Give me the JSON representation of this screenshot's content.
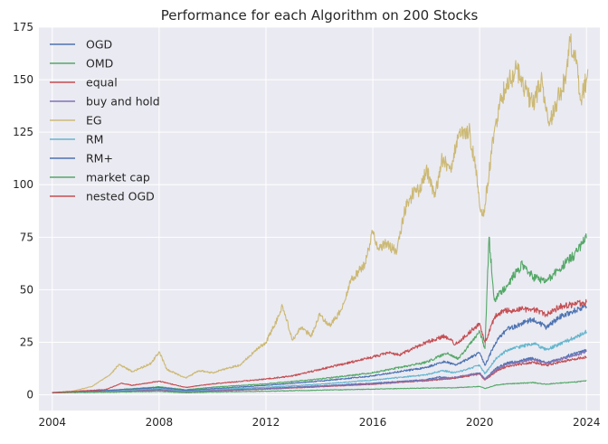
{
  "chart_data": {
    "type": "line",
    "title": "Performance for each Algorithm on 200 Stocks",
    "xlabel": "",
    "ylabel": "",
    "xlim": [
      2003.5,
      2024.5
    ],
    "ylim": [
      -7.5,
      175
    ],
    "x_ticks": [
      2004,
      2008,
      2012,
      2016,
      2020,
      2024
    ],
    "y_ticks": [
      0,
      25,
      50,
      75,
      100,
      125,
      150,
      175
    ],
    "grid": true,
    "legend_position": "top-left",
    "colors": {
      "background": "#eaeaf2",
      "grid": "#ffffff",
      "text": "#262626"
    },
    "series": [
      {
        "name": "OGD",
        "color": "#4c72b0",
        "points": [
          [
            2004,
            1
          ],
          [
            2006,
            1.6
          ],
          [
            2008,
            2.6
          ],
          [
            2009,
            1.6
          ],
          [
            2010,
            2.1
          ],
          [
            2012,
            3.0
          ],
          [
            2014,
            4.2
          ],
          [
            2016,
            5.5
          ],
          [
            2018,
            7.2
          ],
          [
            2018.5,
            8.5
          ],
          [
            2019,
            7.8
          ],
          [
            2020,
            10.5
          ],
          [
            2020.2,
            7.5
          ],
          [
            2020.6,
            12.5
          ],
          [
            2021,
            15.0
          ],
          [
            2022,
            17.5
          ],
          [
            2022.5,
            15.2
          ],
          [
            2023,
            17.0
          ],
          [
            2023.5,
            19.5
          ],
          [
            2024,
            21.5
          ]
        ]
      },
      {
        "name": "OMD",
        "color": "#55a868",
        "points": [
          [
            2004,
            1
          ],
          [
            2006,
            2.0
          ],
          [
            2008,
            3.8
          ],
          [
            2009,
            2.4
          ],
          [
            2010,
            3.6
          ],
          [
            2012,
            5.2
          ],
          [
            2014,
            7.5
          ],
          [
            2016,
            10.5
          ],
          [
            2018,
            15.5
          ],
          [
            2018.8,
            20.0
          ],
          [
            2019.2,
            17.0
          ],
          [
            2020,
            30.0
          ],
          [
            2020.2,
            22.0
          ],
          [
            2020.35,
            75.0
          ],
          [
            2020.55,
            45.0
          ],
          [
            2021,
            52.0
          ],
          [
            2021.6,
            62.0
          ],
          [
            2022,
            56.0
          ],
          [
            2022.5,
            54.0
          ],
          [
            2023,
            60.0
          ],
          [
            2023.5,
            66.0
          ],
          [
            2024,
            74.5
          ]
        ]
      },
      {
        "name": "equal",
        "color": "#c44e52",
        "points": [
          [
            2004,
            1
          ],
          [
            2006,
            1.4
          ],
          [
            2008,
            2.2
          ],
          [
            2009,
            1.3
          ],
          [
            2010,
            1.8
          ],
          [
            2012,
            2.7
          ],
          [
            2014,
            3.8
          ],
          [
            2016,
            5.0
          ],
          [
            2018,
            6.7
          ],
          [
            2019,
            7.8
          ],
          [
            2020,
            9.8
          ],
          [
            2020.2,
            7.0
          ],
          [
            2020.6,
            11.0
          ],
          [
            2021,
            13.5
          ],
          [
            2022,
            15.5
          ],
          [
            2022.5,
            14.0
          ],
          [
            2023,
            15.5
          ],
          [
            2023.5,
            16.8
          ],
          [
            2024,
            18.0
          ]
        ]
      },
      {
        "name": "buy and hold",
        "color": "#8172b3",
        "points": [
          [
            2004,
            1
          ],
          [
            2006,
            1.5
          ],
          [
            2008,
            2.3
          ],
          [
            2009,
            1.4
          ],
          [
            2010,
            1.9
          ],
          [
            2012,
            2.8
          ],
          [
            2014,
            4.0
          ],
          [
            2016,
            5.2
          ],
          [
            2018,
            7.0
          ],
          [
            2019,
            8.2
          ],
          [
            2020,
            10.2
          ],
          [
            2020.2,
            7.3
          ],
          [
            2020.6,
            11.8
          ],
          [
            2021,
            14.5
          ],
          [
            2022,
            16.8
          ],
          [
            2022.5,
            15.0
          ],
          [
            2023,
            16.8
          ],
          [
            2023.5,
            18.5
          ],
          [
            2024,
            20.5
          ]
        ]
      },
      {
        "name": "EG",
        "color": "#ccb974",
        "points": [
          [
            2004,
            1
          ],
          [
            2004.8,
            1.8
          ],
          [
            2005.5,
            4.0
          ],
          [
            2006.2,
            10.0
          ],
          [
            2006.5,
            14.5
          ],
          [
            2007.0,
            11.0
          ],
          [
            2007.7,
            15.0
          ],
          [
            2008.0,
            20.5
          ],
          [
            2008.3,
            12.0
          ],
          [
            2009.0,
            8.0
          ],
          [
            2009.5,
            11.5
          ],
          [
            2010.0,
            10.5
          ],
          [
            2010.5,
            12.5
          ],
          [
            2011.0,
            14.0
          ],
          [
            2011.7,
            22.0
          ],
          [
            2012.0,
            25.0
          ],
          [
            2012.5,
            38.0
          ],
          [
            2012.6,
            43.0
          ],
          [
            2013.0,
            26.0
          ],
          [
            2013.3,
            32.0
          ],
          [
            2013.7,
            28.0
          ],
          [
            2014.0,
            38.0
          ],
          [
            2014.4,
            33.0
          ],
          [
            2014.8,
            40.0
          ],
          [
            2015.2,
            55.0
          ],
          [
            2015.7,
            62.0
          ],
          [
            2016.0,
            78.0
          ],
          [
            2016.2,
            70.0
          ],
          [
            2016.5,
            72.0
          ],
          [
            2016.9,
            68.0
          ],
          [
            2017.2,
            88.0
          ],
          [
            2017.5,
            96.0
          ],
          [
            2017.8,
            98.0
          ],
          [
            2018.0,
            108.0
          ],
          [
            2018.3,
            94.0
          ],
          [
            2018.6,
            112.0
          ],
          [
            2018.9,
            108.0
          ],
          [
            2019.2,
            122.0
          ],
          [
            2019.6,
            126.0
          ],
          [
            2019.9,
            104.0
          ],
          [
            2020.0,
            90.0
          ],
          [
            2020.15,
            85.0
          ],
          [
            2020.5,
            122.0
          ],
          [
            2020.8,
            140.0
          ],
          [
            2021.0,
            148.0
          ],
          [
            2021.4,
            155.0
          ],
          [
            2021.8,
            142.0
          ],
          [
            2022.0,
            138.0
          ],
          [
            2022.3,
            150.0
          ],
          [
            2022.6,
            128.0
          ],
          [
            2022.9,
            140.0
          ],
          [
            2023.2,
            150.0
          ],
          [
            2023.4,
            168.0
          ],
          [
            2023.6,
            160.0
          ],
          [
            2023.8,
            140.0
          ],
          [
            2024.0,
            150.0
          ],
          [
            2024.05,
            155.0
          ]
        ]
      },
      {
        "name": "RM",
        "color": "#64b5cd",
        "points": [
          [
            2004,
            1
          ],
          [
            2006,
            1.8
          ],
          [
            2008,
            3.0
          ],
          [
            2009,
            1.8
          ],
          [
            2010,
            2.5
          ],
          [
            2012,
            3.6
          ],
          [
            2014,
            5.0
          ],
          [
            2016,
            7.0
          ],
          [
            2018,
            9.5
          ],
          [
            2018.6,
            11.5
          ],
          [
            2019.1,
            10.5
          ],
          [
            2020,
            14.0
          ],
          [
            2020.2,
            10.0
          ],
          [
            2020.6,
            17.0
          ],
          [
            2021,
            21.0
          ],
          [
            2022,
            24.5
          ],
          [
            2022.5,
            21.5
          ],
          [
            2023,
            24.0
          ],
          [
            2023.5,
            27.0
          ],
          [
            2024,
            30.0
          ]
        ]
      },
      {
        "name": "RM+",
        "color": "#4c72b0",
        "points": [
          [
            2004,
            1
          ],
          [
            2006,
            2.0
          ],
          [
            2008,
            3.5
          ],
          [
            2009,
            2.1
          ],
          [
            2010,
            2.9
          ],
          [
            2012,
            4.5
          ],
          [
            2014,
            6.5
          ],
          [
            2016,
            9.0
          ],
          [
            2018,
            13.0
          ],
          [
            2018.7,
            16.0
          ],
          [
            2019.1,
            14.0
          ],
          [
            2020,
            20.0
          ],
          [
            2020.2,
            14.0
          ],
          [
            2020.6,
            25.0
          ],
          [
            2021,
            31.0
          ],
          [
            2022,
            36.0
          ],
          [
            2022.5,
            32.0
          ],
          [
            2023,
            37.0
          ],
          [
            2023.5,
            40.0
          ],
          [
            2024,
            42.0
          ]
        ]
      },
      {
        "name": "market cap",
        "color": "#55a868",
        "points": [
          [
            2004,
            1
          ],
          [
            2006,
            1.2
          ],
          [
            2008,
            1.6
          ],
          [
            2009,
            1.0
          ],
          [
            2010,
            1.3
          ],
          [
            2012,
            1.7
          ],
          [
            2014,
            2.2
          ],
          [
            2016,
            2.7
          ],
          [
            2018,
            3.2
          ],
          [
            2019,
            3.3
          ],
          [
            2020,
            4.0
          ],
          [
            2020.2,
            3.0
          ],
          [
            2020.6,
            4.6
          ],
          [
            2021,
            5.2
          ],
          [
            2022,
            5.8
          ],
          [
            2022.5,
            5.0
          ],
          [
            2023,
            5.6
          ],
          [
            2023.5,
            6.0
          ],
          [
            2024,
            6.6
          ]
        ]
      },
      {
        "name": "nested OGD",
        "color": "#c44e52",
        "points": [
          [
            2004,
            1
          ],
          [
            2006,
            2.5
          ],
          [
            2006.6,
            5.5
          ],
          [
            2007,
            4.5
          ],
          [
            2008,
            6.5
          ],
          [
            2009,
            3.5
          ],
          [
            2010,
            5.2
          ],
          [
            2012,
            7.5
          ],
          [
            2013,
            9.0
          ],
          [
            2014,
            12.0
          ],
          [
            2015,
            15.0
          ],
          [
            2016,
            18.0
          ],
          [
            2016.6,
            20.0
          ],
          [
            2017,
            19.0
          ],
          [
            2018,
            25.0
          ],
          [
            2018.7,
            28.0
          ],
          [
            2019.1,
            24.0
          ],
          [
            2020,
            34.0
          ],
          [
            2020.2,
            25.0
          ],
          [
            2020.6,
            38.0
          ],
          [
            2021,
            40.0
          ],
          [
            2022,
            41.0
          ],
          [
            2022.5,
            38.0
          ],
          [
            2023,
            42.0
          ],
          [
            2023.5,
            43.0
          ],
          [
            2024,
            44.0
          ]
        ]
      }
    ]
  }
}
